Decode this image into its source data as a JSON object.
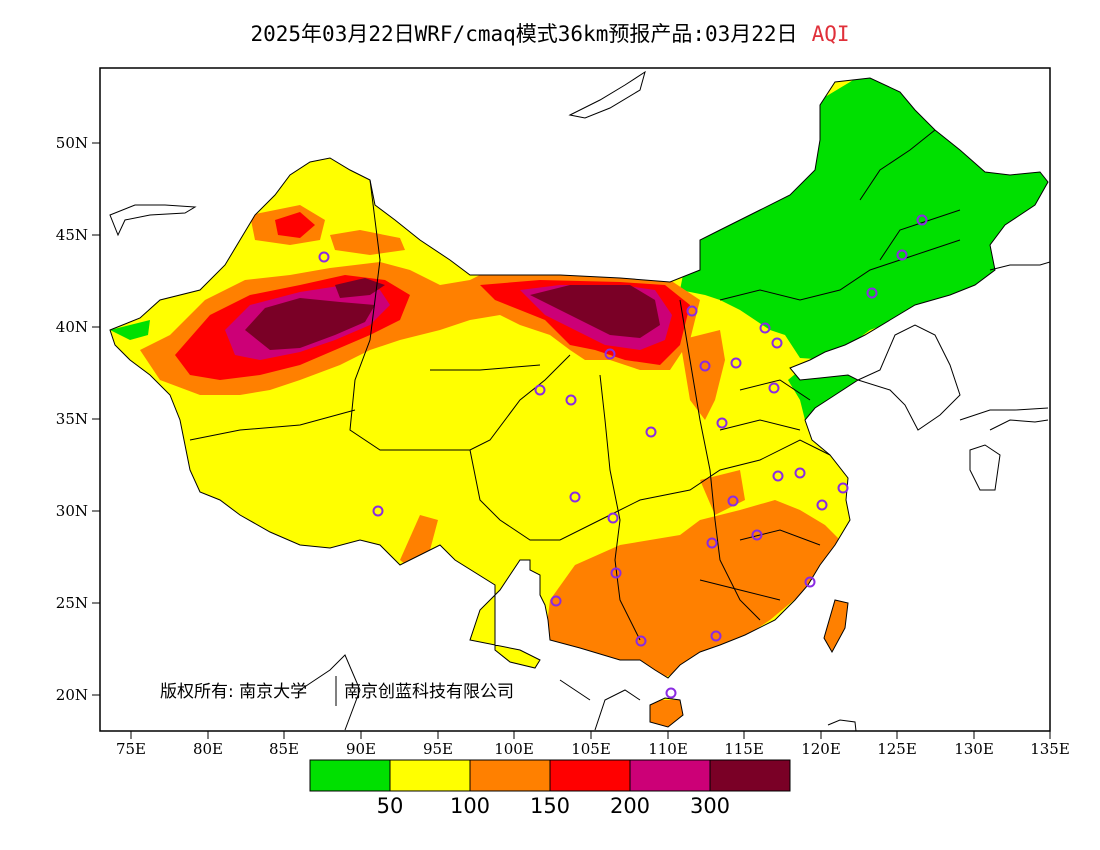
{
  "title": {
    "main": "2025年03月22日WRF/cmaq模式36km预报产品:03月22日",
    "variable": "AQI"
  },
  "map": {
    "lon_range": [
      73,
      135
    ],
    "lat_range": [
      18,
      54
    ],
    "lat_ticks": [
      "50N",
      "45N",
      "40N",
      "35N",
      "30N",
      "25N",
      "20N"
    ],
    "lon_ticks": [
      "75E",
      "80E",
      "85E",
      "90E",
      "95E",
      "100E",
      "105E",
      "110E",
      "115E",
      "120E",
      "125E",
      "130E",
      "135E"
    ],
    "copyright": {
      "part1": "版权所有: 南京大学",
      "part2": "南京创蓝科技有限公司"
    },
    "station_marker_color": "#8a2be2"
  },
  "legend": {
    "colors": [
      "#00e000",
      "#ffff00",
      "#ff8000",
      "#ff0000",
      "#cc0077",
      "#7a0026"
    ],
    "labels": [
      "50",
      "100",
      "150",
      "200",
      "300"
    ]
  }
}
